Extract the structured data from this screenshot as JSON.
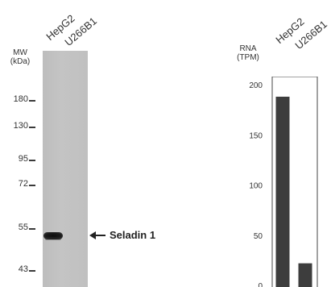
{
  "western_blot": {
    "mw_label_line1": "MW",
    "mw_label_line2": "(kDa)",
    "lanes": [
      "HepG2",
      "U266B1"
    ],
    "markers": [
      "180",
      "130",
      "95",
      "72",
      "55",
      "43"
    ],
    "band_label": "Seladin 1"
  },
  "chart_data": {
    "type": "bar",
    "ylabel_line1": "RNA",
    "ylabel_line2": "(TPM)",
    "categories": [
      "HepG2",
      "U266B1"
    ],
    "values": [
      188,
      22
    ],
    "yticks": [
      "200",
      "150",
      "100",
      "50",
      "0"
    ],
    "ylim": [
      0,
      200
    ],
    "bar_color": "#3d3d3d"
  }
}
